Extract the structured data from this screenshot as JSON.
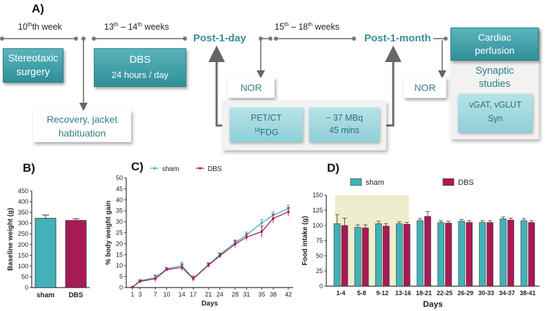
{
  "panelA": {
    "letter": "A)",
    "week10": "10",
    "week10_suffix": "th week",
    "week13_start": "13",
    "week13_mid": " – 14",
    "week13_suffix": " weeks",
    "week15_start": "15",
    "week15_mid": " – 18",
    "week15_suffix": " weeks",
    "th": "th",
    "post1day": "Post-1-day",
    "post1month": "Post-1-month",
    "stereotaxic_line1": "Stereotaxic",
    "stereotaxic_line2": "surgery",
    "dbs_title": "DBS",
    "dbs_sub": "24 hours / day",
    "recovery_line1": "Recovery, jacket",
    "recovery_line2": "habituation",
    "nor1": "NOR",
    "nor2": "NOR",
    "pet_line1": "PET/CT",
    "pet_sup": "18",
    "pet_line2": "FDG",
    "mbq_line1": "~ 37 MBq",
    "mbq_line2": "45 mins",
    "cardiac_line1": "Cardiac",
    "cardiac_line2": "perfusion",
    "synaptic_line1": "Synaptic",
    "synaptic_line2": "studies",
    "vgat_line1": "vGAT, vGLUT",
    "vgat_line2": "Syn"
  },
  "colors": {
    "sham": "#42b1b9",
    "dbs": "#a81a55",
    "highlight": "#eeeecc",
    "teal": "#3a8e99"
  },
  "chart_data": [
    {
      "id": "B",
      "letter": "B)",
      "type": "bar",
      "categories": [
        "sham",
        "DBS"
      ],
      "values": [
        323,
        313
      ],
      "errors": [
        15,
        8
      ],
      "ylabel": "Baseline weight (g)",
      "xlabel": "",
      "ylim": [
        0,
        450
      ],
      "yticks": [
        "0",
        "50",
        "100",
        "150",
        "200",
        "250",
        "300",
        "350",
        "400",
        "450"
      ]
    },
    {
      "id": "C",
      "letter": "C)",
      "type": "line",
      "x": [
        1,
        3,
        7,
        10,
        14,
        17,
        21,
        24,
        28,
        31,
        35,
        38,
        42
      ],
      "xticks": [
        "1",
        "3",
        "7",
        "10",
        "14",
        "17",
        "21",
        "24",
        "28",
        "31",
        "35",
        "38",
        "42"
      ],
      "series": [
        {
          "name": "sham",
          "values": [
            0.2,
            3.2,
            4.5,
            8.5,
            10,
            4.2,
            10.5,
            15,
            20.5,
            24,
            29.5,
            33,
            36
          ],
          "errors": [
            0.3,
            0.5,
            1.2,
            0.6,
            1.5,
            1,
            0.8,
            0.8,
            1.2,
            1.3,
            1.5,
            1.5,
            1.5
          ]
        },
        {
          "name": "DBS",
          "values": [
            0.2,
            2.8,
            4,
            8.2,
            9.2,
            4,
            10.2,
            14.5,
            19.8,
            23,
            25.5,
            31.5,
            34.5
          ],
          "errors": [
            0.3,
            0.5,
            1.5,
            0.7,
            1.5,
            1.2,
            1,
            1,
            1.5,
            1.5,
            2.5,
            2,
            2
          ]
        }
      ],
      "ylabel": "% body weight gain",
      "xlabel": "Days",
      "ylim": [
        0,
        50
      ],
      "yticks": [
        "0",
        "5",
        "10",
        "15",
        "20",
        "25",
        "30",
        "35",
        "40",
        "45",
        "50"
      ]
    },
    {
      "id": "D",
      "letter": "D)",
      "type": "bar",
      "categories": [
        "1-4",
        "5-8",
        "9-12",
        "13-16",
        "18-21",
        "22-25",
        "26-29",
        "30-33",
        "34-37",
        "38-41"
      ],
      "series": [
        {
          "name": "sham",
          "values": [
            103,
            97,
            103,
            103,
            108,
            105,
            107,
            105,
            111,
            108
          ],
          "errors": [
            15,
            4,
            4,
            3,
            3,
            3,
            3,
            3,
            3,
            3
          ]
        },
        {
          "name": "DBS",
          "values": [
            100,
            96,
            99,
            102,
            115,
            104,
            105,
            105,
            109,
            105
          ],
          "errors": [
            12,
            5,
            4,
            3,
            8,
            3,
            3,
            3,
            3,
            3
          ]
        }
      ],
      "highlight_range": [
        "1-4",
        "13-16"
      ],
      "ylabel": "Food intake (g)",
      "xlabel": "Days",
      "ylim": [
        0,
        150
      ],
      "yticks": [
        "0",
        "25",
        "50",
        "75",
        "100",
        "125",
        "150"
      ]
    }
  ]
}
